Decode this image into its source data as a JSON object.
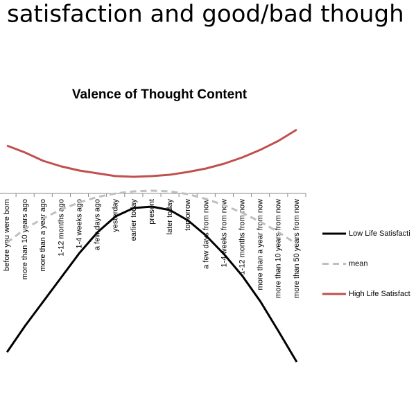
{
  "slide_title": "satisfaction and good/bad though",
  "chart_data": {
    "type": "line",
    "title": "Valence of Thought Content",
    "categories": [
      "before you were born",
      "more than 10 years ago",
      "more than a year ago",
      "1-12 months ago",
      "1-4 weeks ago",
      "a few days ago",
      "yesterday",
      "earlier today",
      "present",
      "later today",
      "tomorrow",
      "a few days from now",
      "1-4 weeks from now",
      "1-12 months from now",
      "more than a year from now",
      "more than 10 years from now",
      "more than 50 years from now"
    ],
    "ylim": [
      -2.5,
      1
    ],
    "series": [
      {
        "name": "Low Life Satisfacti",
        "color": "#000000",
        "dash": false,
        "values": [
          -2.29,
          -1.91,
          -1.56,
          -1.21,
          -0.86,
          -0.56,
          -0.33,
          -0.21,
          -0.19,
          -0.24,
          -0.39,
          -0.61,
          -0.88,
          -1.19,
          -1.56,
          -1.99,
          -2.43
        ]
      },
      {
        "name": "mean",
        "color": "#bfbfbf",
        "dash": true,
        "values": [
          -0.71,
          -0.51,
          -0.36,
          -0.23,
          -0.13,
          -0.05,
          0,
          0.03,
          0.04,
          0.03,
          -0.01,
          -0.08,
          -0.17,
          -0.28,
          -0.41,
          -0.56,
          -0.73
        ]
      },
      {
        "name": "High Life Satisfact",
        "color": "#c0504d",
        "dash": false,
        "values": [
          0.69,
          0.59,
          0.47,
          0.39,
          0.33,
          0.29,
          0.25,
          0.24,
          0.25,
          0.27,
          0.31,
          0.36,
          0.43,
          0.52,
          0.63,
          0.76,
          0.92
        ]
      }
    ]
  }
}
